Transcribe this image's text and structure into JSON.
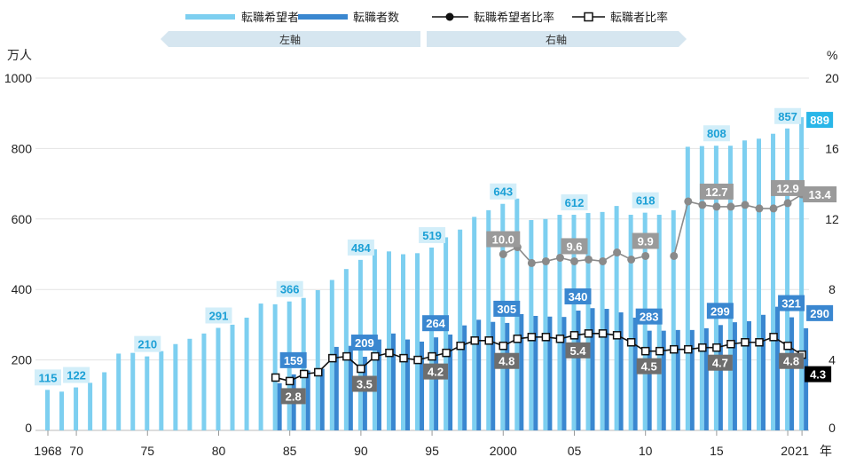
{
  "chart_data": {
    "type": "bar+line",
    "left_axis": {
      "unit": "万人",
      "ticks": [
        0,
        200,
        400,
        600,
        800,
        1000
      ],
      "range": [
        0,
        1000
      ]
    },
    "right_axis": {
      "unit": "%",
      "ticks": [
        0,
        4,
        8,
        12,
        16,
        20
      ],
      "range": [
        0,
        20
      ]
    },
    "x_tick_labels": [
      {
        "year": 1968,
        "label": "1968"
      },
      {
        "year": 1970,
        "label": "70"
      },
      {
        "year": 1975,
        "label": "75"
      },
      {
        "year": 1980,
        "label": "80"
      },
      {
        "year": 1985,
        "label": "85"
      },
      {
        "year": 1990,
        "label": "90"
      },
      {
        "year": 1995,
        "label": "95"
      },
      {
        "year": 2000,
        "label": "2000"
      },
      {
        "year": 2005,
        "label": "05"
      },
      {
        "year": 2010,
        "label": "10"
      },
      {
        "year": 2015,
        "label": "15"
      },
      {
        "year": 2020,
        "label": "20"
      },
      {
        "year": 2021,
        "label": "21"
      }
    ],
    "x_unit": "年",
    "legend": {
      "hopefuls": "転職希望者",
      "changers": "転職者数",
      "hope_ratio": "転職希望者比率",
      "change_ratio": "転職者比率"
    },
    "banner": {
      "left": "左軸",
      "right": "右軸"
    },
    "colors": {
      "hopefuls": "#7dcff0",
      "changers": "#3a87d0",
      "hope_ratio": "#8a8a8a",
      "change_ratio": "#000000"
    },
    "series": {
      "hopefuls": {
        "years": [
          1968,
          1969,
          1970,
          1971,
          1972,
          1973,
          1974,
          1975,
          1976,
          1977,
          1978,
          1979,
          1980,
          1981,
          1982,
          1983,
          1984,
          1985,
          1986,
          1987,
          1988,
          1989,
          1990,
          1991,
          1992,
          1993,
          1994,
          1995,
          1996,
          1997,
          1998,
          1999,
          2000,
          2001,
          2002,
          2003,
          2004,
          2005,
          2006,
          2007,
          2008,
          2009,
          2010,
          2011,
          2012,
          2013,
          2014,
          2015,
          2016,
          2017,
          2018,
          2019,
          2020,
          2021
        ],
        "values": [
          115,
          110,
          122,
          135,
          165,
          218,
          220,
          210,
          225,
          245,
          260,
          275,
          291,
          300,
          320,
          360,
          358,
          366,
          376,
          398,
          427,
          458,
          484,
          514,
          508,
          500,
          503,
          519,
          548,
          570,
          606,
          625,
          643,
          658,
          597,
          600,
          612,
          612,
          617,
          620,
          637,
          612,
          618,
          612,
          625,
          805,
          807,
          808,
          808,
          823,
          828,
          842,
          857,
          889
        ]
      },
      "changers": {
        "years": [
          1984,
          1985,
          1986,
          1987,
          1988,
          1989,
          1990,
          1991,
          1992,
          1993,
          1994,
          1995,
          1996,
          1997,
          1998,
          1999,
          2000,
          2001,
          2002,
          2003,
          2004,
          2005,
          2006,
          2007,
          2008,
          2009,
          2010,
          2011,
          2012,
          2013,
          2014,
          2015,
          2016,
          2017,
          2018,
          2019,
          2020,
          2021
        ],
        "values": [
          134,
          159,
          170,
          175,
          237,
          240,
          209,
          258,
          275,
          258,
          252,
          264,
          272,
          298,
          314,
          308,
          305,
          330,
          325,
          323,
          322,
          340,
          347,
          345,
          335,
          320,
          283,
          283,
          285,
          285,
          290,
          299,
          307,
          310,
          328,
          351,
          321,
          290
        ]
      },
      "hope_ratio": {
        "years": [
          2000,
          2001,
          2002,
          2003,
          2004,
          2005,
          2006,
          2007,
          2008,
          2009,
          2010,
          2012,
          2013,
          2014,
          2015,
          2016,
          2017,
          2018,
          2019,
          2020,
          2021
        ],
        "values": [
          10.0,
          10.4,
          9.5,
          9.6,
          9.8,
          9.6,
          9.7,
          9.6,
          10.1,
          9.7,
          9.9,
          9.9,
          13.0,
          12.8,
          12.7,
          12.7,
          12.8,
          12.6,
          12.6,
          12.9,
          13.4
        ]
      },
      "change_ratio": {
        "years": [
          1984,
          1985,
          1986,
          1987,
          1988,
          1989,
          1990,
          1991,
          1992,
          1993,
          1994,
          1995,
          1996,
          1997,
          1998,
          1999,
          2000,
          2001,
          2002,
          2003,
          2004,
          2005,
          2006,
          2007,
          2008,
          2009,
          2010,
          2011,
          2012,
          2013,
          2014,
          2015,
          2016,
          2017,
          2018,
          2019,
          2020,
          2021
        ],
        "values": [
          3.0,
          2.8,
          3.2,
          3.3,
          4.1,
          4.2,
          3.5,
          4.2,
          4.4,
          4.1,
          4.0,
          4.2,
          4.4,
          4.8,
          5.1,
          5.1,
          4.8,
          5.2,
          5.3,
          5.3,
          5.2,
          5.4,
          5.5,
          5.5,
          5.4,
          5.0,
          4.5,
          4.5,
          4.6,
          4.6,
          4.7,
          4.7,
          4.9,
          5.0,
          5.0,
          5.3,
          4.8,
          4.3
        ]
      }
    },
    "data_labels": {
      "hopefuls": [
        {
          "year": 1968,
          "value": "115"
        },
        {
          "year": 1970,
          "value": "122"
        },
        {
          "year": 1975,
          "value": "210"
        },
        {
          "year": 1980,
          "value": "291"
        },
        {
          "year": 1985,
          "value": "366"
        },
        {
          "year": 1990,
          "value": "484"
        },
        {
          "year": 1995,
          "value": "519"
        },
        {
          "year": 2000,
          "value": "643"
        },
        {
          "year": 2005,
          "value": "612"
        },
        {
          "year": 2010,
          "value": "618"
        },
        {
          "year": 2015,
          "value": "808"
        },
        {
          "year": 2020,
          "value": "857"
        },
        {
          "year": 2021,
          "value": "889"
        }
      ],
      "changers": [
        {
          "year": 1985,
          "value": "159"
        },
        {
          "year": 1990,
          "value": "209"
        },
        {
          "year": 1995,
          "value": "264"
        },
        {
          "year": 2000,
          "value": "305"
        },
        {
          "year": 2005,
          "value": "340"
        },
        {
          "year": 2010,
          "value": "283"
        },
        {
          "year": 2015,
          "value": "299"
        },
        {
          "year": 2020,
          "value": "321"
        },
        {
          "year": 2021,
          "value": "290"
        }
      ],
      "hope_ratio": [
        {
          "year": 2000,
          "value": "10.0"
        },
        {
          "year": 2005,
          "value": "9.6"
        },
        {
          "year": 2010,
          "value": "9.9"
        },
        {
          "year": 2015,
          "value": "12.7"
        },
        {
          "year": 2020,
          "value": "12.9"
        },
        {
          "year": 2021,
          "value": "13.4"
        }
      ],
      "change_ratio": [
        {
          "year": 1985,
          "value": "2.8"
        },
        {
          "year": 1990,
          "value": "3.5"
        },
        {
          "year": 1995,
          "value": "4.2"
        },
        {
          "year": 2000,
          "value": "4.8"
        },
        {
          "year": 2005,
          "value": "5.4"
        },
        {
          "year": 2010,
          "value": "4.5"
        },
        {
          "year": 2015,
          "value": "4.7"
        },
        {
          "year": 2020,
          "value": "4.8"
        },
        {
          "year": 2021,
          "value": "4.3"
        }
      ]
    }
  }
}
